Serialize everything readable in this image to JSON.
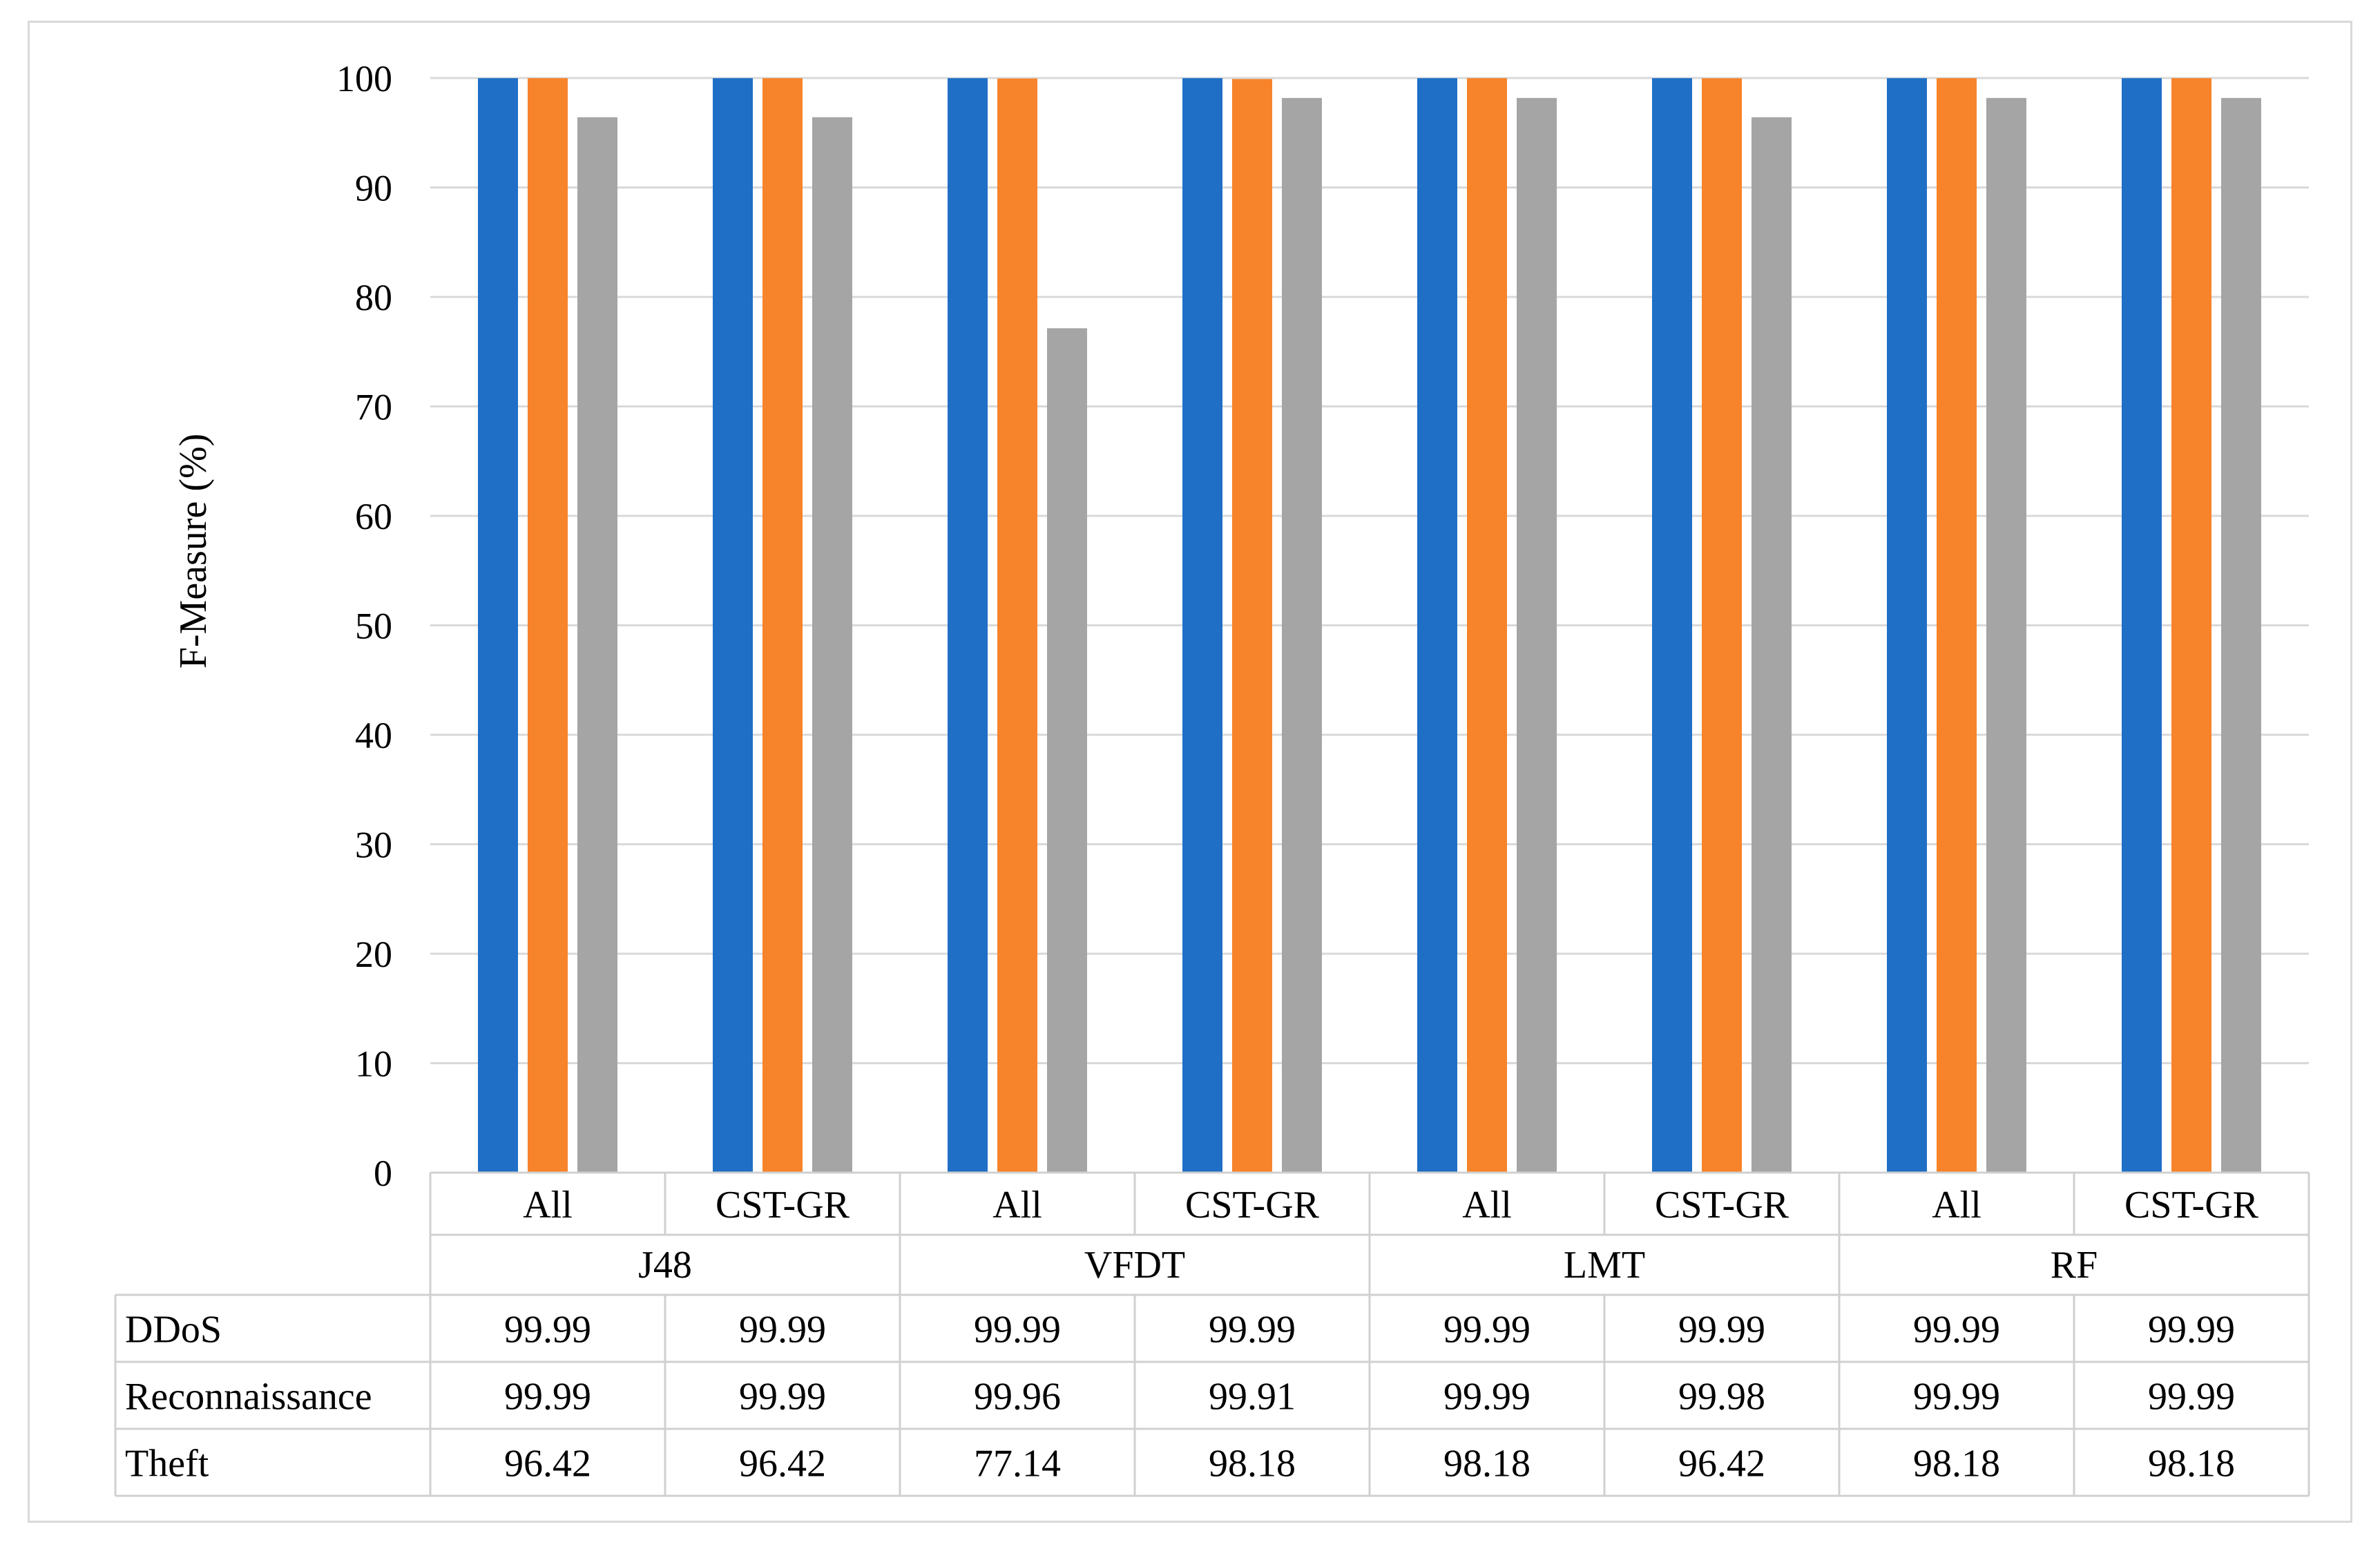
{
  "chart_data": {
    "type": "bar",
    "ylabel": "F-Measure (%)",
    "xlabel": "",
    "ylim": [
      0,
      100
    ],
    "yticks": [
      0,
      10,
      20,
      30,
      40,
      50,
      60,
      70,
      80,
      90,
      100
    ],
    "grid": true,
    "legend": "data-table",
    "groups": [
      {
        "label": "J48",
        "subcategories": [
          "All",
          "CST-GR"
        ]
      },
      {
        "label": "VFDT",
        "subcategories": [
          "All",
          "CST-GR"
        ]
      },
      {
        "label": "LMT",
        "subcategories": [
          "All",
          "CST-GR"
        ]
      },
      {
        "label": "RF",
        "subcategories": [
          "All",
          "CST-GR"
        ]
      }
    ],
    "series": [
      {
        "name": "DDoS",
        "color": "#1f6fc6",
        "values": [
          99.99,
          99.99,
          99.99,
          99.99,
          99.99,
          99.99,
          99.99,
          99.99
        ],
        "labels": [
          "99.99",
          "99.99",
          "99.99",
          "99.99",
          "99.99",
          "99.99",
          "99.99",
          "99.99"
        ]
      },
      {
        "name": "Reconnaissance",
        "color": "#f7832a",
        "values": [
          99.99,
          99.99,
          99.96,
          99.91,
          99.99,
          99.98,
          99.99,
          99.99
        ],
        "labels": [
          "99.99",
          "99.99",
          "99.96",
          "99.91",
          "99.99",
          "99.98",
          "99.99",
          "99.99"
        ]
      },
      {
        "name": "Theft",
        "color": "#a5a5a5",
        "values": [
          96.42,
          96.42,
          77.14,
          98.18,
          98.18,
          96.42,
          98.18,
          98.18
        ],
        "labels": [
          "96.42",
          "96.42",
          "77.14",
          "98.18",
          "98.18",
          "96.42",
          "98.18",
          "98.18"
        ]
      }
    ]
  },
  "colors": {
    "grid": "#d9d9d9",
    "table_border": "#d0d0d0",
    "frame_border": "#d9d9d9"
  }
}
